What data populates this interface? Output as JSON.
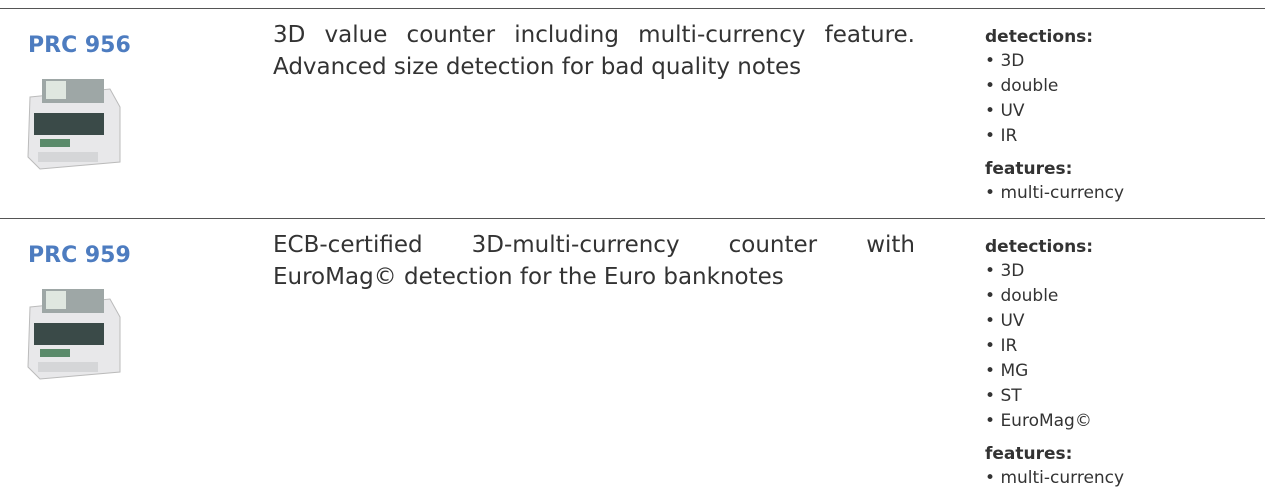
{
  "products": [
    {
      "name": "PRC 956",
      "description": "3D value counter including multi-currency feature. Advanced size detection for bad quality notes",
      "detections_label": "detections:",
      "detections": [
        "3D",
        "double",
        "UV",
        "IR"
      ],
      "features_label": "features:",
      "features": [
        "multi-currency"
      ]
    },
    {
      "name": "PRC 959",
      "description": "ECB-certified 3D-multi-currency counter with EuroMag© detection for the Euro banknotes",
      "detections_label": "detections:",
      "detections": [
        "3D",
        "double",
        "UV",
        "IR",
        "MG",
        "ST",
        "EuroMag©"
      ],
      "features_label": "features:",
      "features": [
        "multi-currency"
      ]
    }
  ]
}
